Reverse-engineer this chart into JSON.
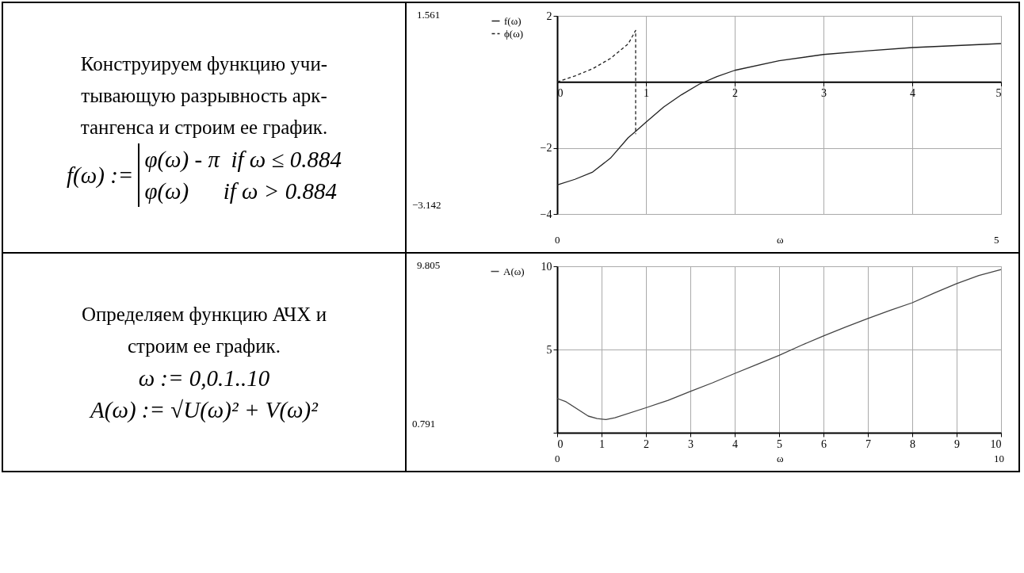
{
  "chart_data": [
    {
      "type": "other",
      "title": "Конструируем функцию учи-\nтывающую разрывность арк-\nтангенса и строим ее график.",
      "subtitle": "f(ω) :=",
      "annotations": [
        "φ(ω) - π  if ω ≤ 0.884",
        "φ(ω)      if ω > 0.884"
      ]
    },
    {
      "type": "line",
      "xlabel": "ω",
      "xlim": [
        0,
        5
      ],
      "xticks": [
        0,
        1,
        2,
        3,
        4,
        5
      ],
      "ylim": [
        -4,
        2
      ],
      "yticks": [
        -4,
        -2,
        2
      ],
      "grid": true,
      "legend": "left",
      "annotations": [
        "1.561",
        "−3.142",
        "0",
        "5"
      ],
      "series": [
        {
          "name": "f(ω)",
          "color": "#222222",
          "line_style": "solid",
          "x": [
            0,
            0.2,
            0.4,
            0.6,
            0.8,
            0.884,
            1,
            1.2,
            1.4,
            1.6,
            1.8,
            2,
            2.5,
            3,
            3.5,
            4,
            4.5,
            5
          ],
          "values": [
            -3.12,
            -2.95,
            -2.73,
            -2.31,
            -1.69,
            -1.5,
            -1.22,
            -0.76,
            -0.39,
            -0.07,
            0.16,
            0.35,
            0.64,
            0.83,
            0.94,
            1.04,
            1.1,
            1.16
          ]
        },
        {
          "name": "ϕ(ω)",
          "color": "#222222",
          "line_style": "dashed",
          "x": [
            0,
            0.2,
            0.4,
            0.6,
            0.8,
            0.884,
            0.884
          ],
          "values": [
            0,
            0.18,
            0.4,
            0.71,
            1.15,
            1.56,
            -1.58
          ]
        }
      ]
    },
    {
      "type": "other",
      "title": "Определяем функцию АЧХ и\nстроим ее график.",
      "annotations": [
        "ω := 0,0.1..10",
        "A(ω) := √U(ω)² + V(ω)²"
      ]
    },
    {
      "type": "line",
      "xlabel": "ω",
      "xlim": [
        0,
        10
      ],
      "xticks": [
        0,
        1,
        2,
        3,
        4,
        5,
        6,
        7,
        8,
        9,
        10
      ],
      "ylim": [
        0,
        10
      ],
      "yticks": [
        {
          "value": 0,
          "label": null
        },
        5,
        10
      ],
      "grid": true,
      "legend": "left",
      "annotations": [
        "9.805",
        "0.791",
        "0",
        "10"
      ],
      "series": [
        {
          "name": "A(ω)",
          "color": "#444444",
          "line_style": "solid",
          "x": [
            0,
            0.2,
            0.7,
            0.9,
            1.1,
            1.3,
            2,
            2.5,
            3,
            3.5,
            4,
            4.5,
            5,
            5.5,
            6,
            6.5,
            7,
            7.5,
            8,
            8.5,
            9,
            9.5,
            10
          ],
          "values": [
            2.06,
            1.86,
            1.0,
            0.85,
            0.79,
            0.9,
            1.5,
            1.95,
            2.48,
            3.0,
            3.56,
            4.1,
            4.65,
            5.25,
            5.82,
            6.35,
            6.86,
            7.35,
            7.81,
            8.4,
            8.96,
            9.45,
            9.8
          ]
        }
      ]
    }
  ]
}
